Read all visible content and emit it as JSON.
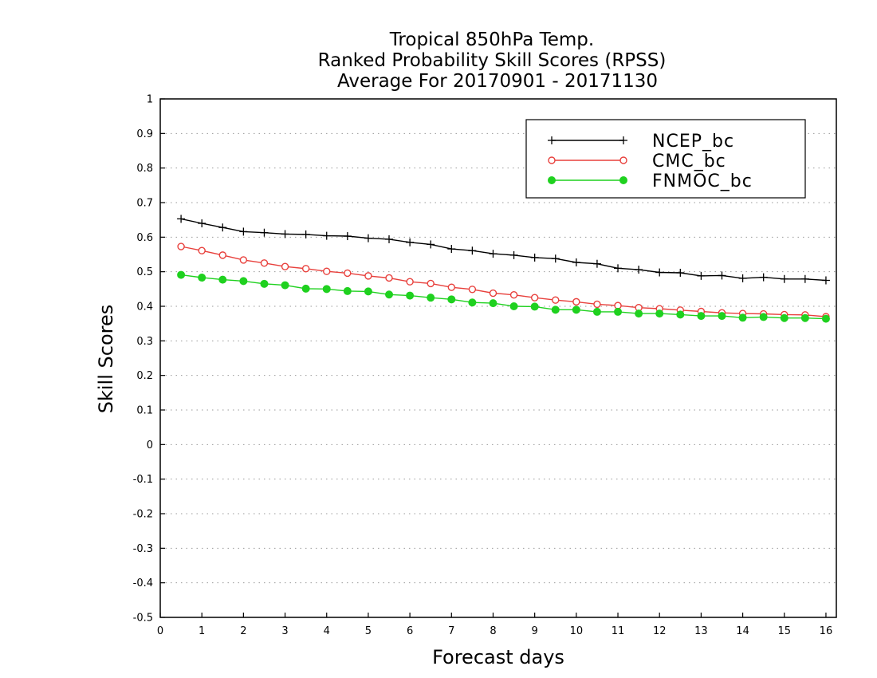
{
  "chart_data": {
    "type": "line",
    "title": [
      "Tropical 850hPa Temp.",
      "Ranked Probability Skill Scores (RPSS)",
      "Average For 20170901 - 20171130"
    ],
    "xlabel": "Forecast days",
    "ylabel": "Skill Scores",
    "xlim": [
      0,
      16.25
    ],
    "ylim": [
      -0.5,
      1
    ],
    "xticks": [
      0,
      1,
      2,
      3,
      4,
      5,
      6,
      7,
      8,
      9,
      10,
      11,
      12,
      13,
      14,
      15,
      16
    ],
    "yticks": [
      1,
      0.9,
      0.8,
      0.7,
      0.6,
      0.5,
      0.4,
      0.3,
      0.2,
      0.1,
      0,
      -0.1,
      -0.2,
      -0.3,
      -0.4,
      -0.5
    ],
    "grid": "horizontal-dotted",
    "legend_position": "top-right",
    "x": [
      0.5,
      1,
      1.5,
      2,
      2.5,
      3,
      3.5,
      4,
      4.5,
      5,
      5.5,
      6,
      6.5,
      7,
      7.5,
      8,
      8.5,
      9,
      9.5,
      10,
      10.5,
      11,
      11.5,
      12,
      12.5,
      13,
      13.5,
      14,
      14.5,
      15,
      15.5,
      16
    ],
    "series": [
      {
        "name": "NCEP_bc",
        "color": "#000000",
        "marker": "plus",
        "values": [
          0.653,
          0.64,
          0.628,
          0.616,
          0.613,
          0.609,
          0.608,
          0.604,
          0.603,
          0.597,
          0.594,
          0.585,
          0.579,
          0.566,
          0.561,
          0.552,
          0.548,
          0.541,
          0.538,
          0.527,
          0.523,
          0.51,
          0.506,
          0.498,
          0.497,
          0.488,
          0.489,
          0.481,
          0.484,
          0.479,
          0.479,
          0.475
        ]
      },
      {
        "name": "CMC_bc",
        "color": "#e8403c",
        "marker": "open-circle",
        "values": [
          0.573,
          0.561,
          0.548,
          0.534,
          0.525,
          0.515,
          0.509,
          0.501,
          0.496,
          0.488,
          0.482,
          0.471,
          0.466,
          0.455,
          0.449,
          0.438,
          0.433,
          0.425,
          0.418,
          0.413,
          0.406,
          0.402,
          0.396,
          0.393,
          0.389,
          0.385,
          0.381,
          0.379,
          0.378,
          0.376,
          0.375,
          0.37
        ]
      },
      {
        "name": "FNMOC_bc",
        "color": "#1fd11f",
        "marker": "filled-circle",
        "values": [
          0.491,
          0.483,
          0.477,
          0.473,
          0.465,
          0.461,
          0.451,
          0.45,
          0.444,
          0.443,
          0.434,
          0.431,
          0.425,
          0.42,
          0.411,
          0.409,
          0.4,
          0.399,
          0.39,
          0.39,
          0.384,
          0.384,
          0.379,
          0.379,
          0.376,
          0.372,
          0.372,
          0.367,
          0.369,
          0.366,
          0.366,
          0.364
        ]
      }
    ]
  }
}
